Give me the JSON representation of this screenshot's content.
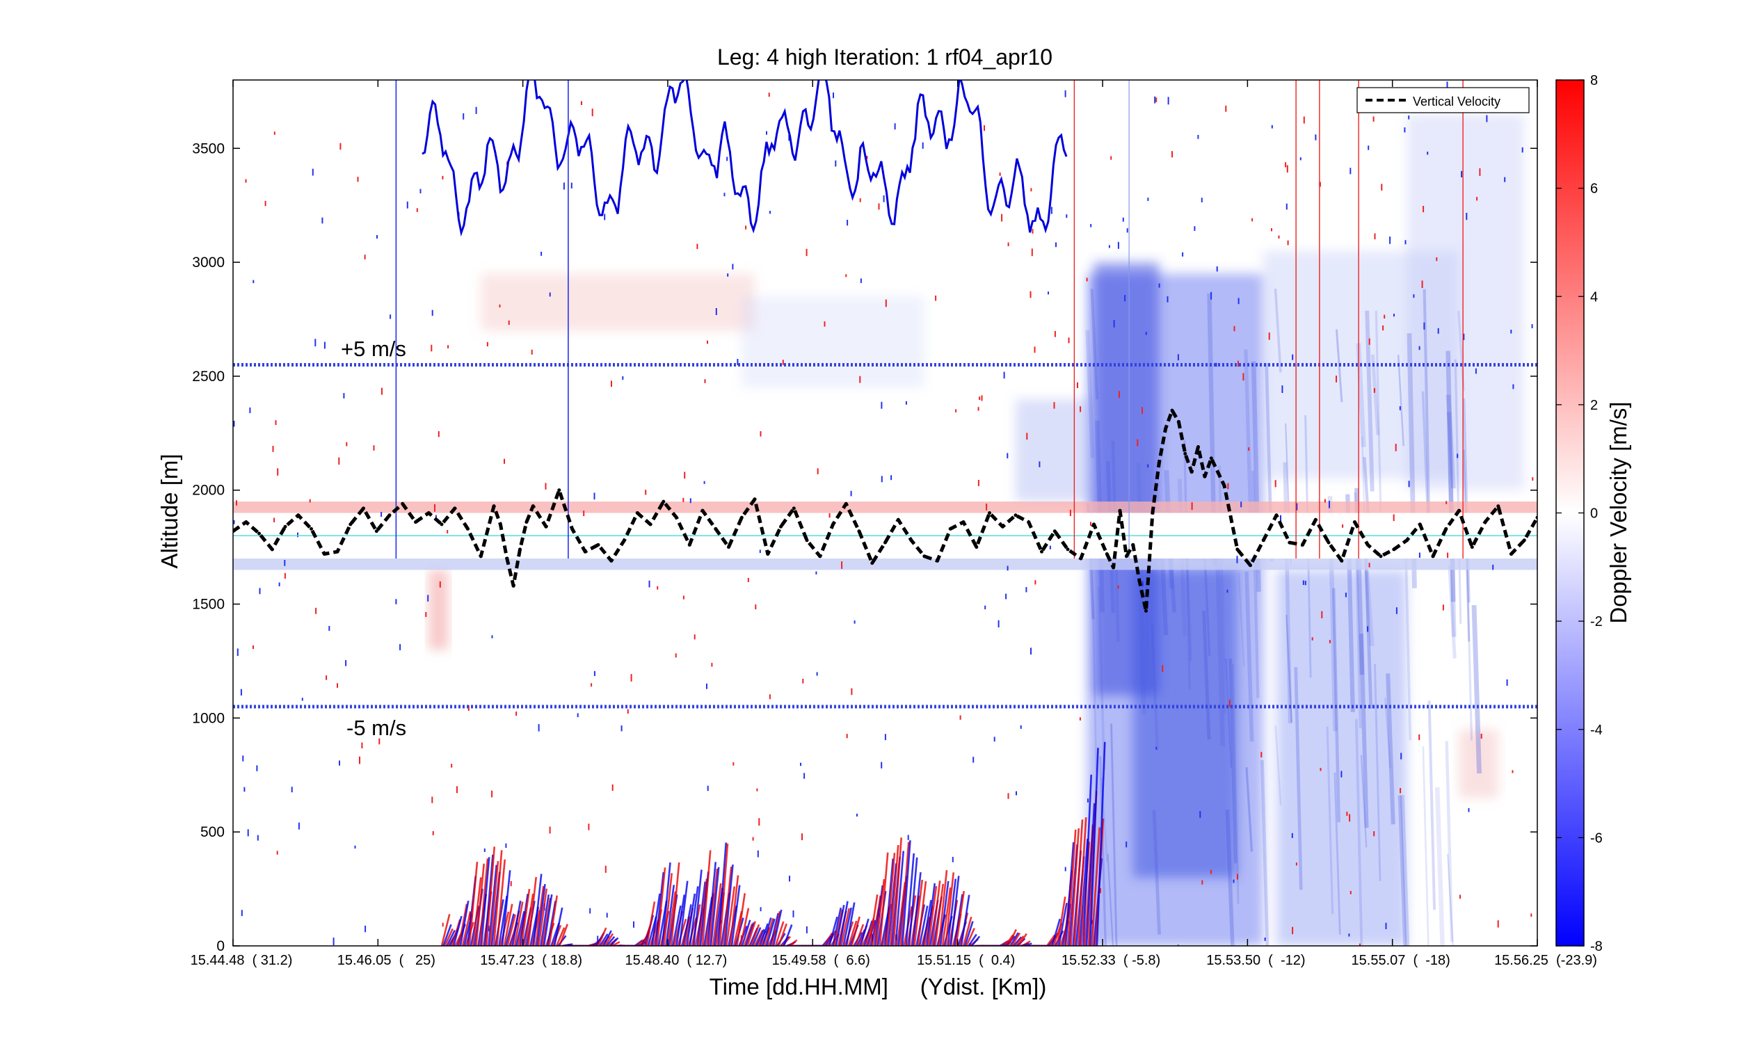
{
  "chart_data": {
    "type": "heatmap",
    "title": "Leg: 4 high Iteration: 1  rf04_apr10",
    "xlabel": "Time [dd.HH.MM]     (Ydist. [Km])",
    "ylabel": "Altitude [m]",
    "ylim": [
      0,
      3800
    ],
    "yticks": [
      0,
      500,
      1000,
      1500,
      2000,
      2500,
      3000,
      3500
    ],
    "ytick_labels": [
      "0",
      "500",
      "1000",
      "1500",
      "2000",
      "2500",
      "3000",
      "3500"
    ],
    "xlim": [
      0,
      1
    ],
    "xtick_labels": [
      {
        "time": "15.44.48",
        "dist": "( 31.2)",
        "pos": 0.0
      },
      {
        "time": "15.46.05",
        "dist": "(   25)",
        "pos": 0.1111
      },
      {
        "time": "15.47.23",
        "dist": "( 18.8)",
        "pos": 0.2222
      },
      {
        "time": "15.48.40",
        "dist": "( 12.7)",
        "pos": 0.3333
      },
      {
        "time": "15.49.58",
        "dist": "(  6.6)",
        "pos": 0.4444
      },
      {
        "time": "15.51.15",
        "dist": "(  0.4)",
        "pos": 0.5556
      },
      {
        "time": "15.52.33",
        "dist": "( -5.8)",
        "pos": 0.6667
      },
      {
        "time": "15.53.50",
        "dist": "(  -12)",
        "pos": 0.7778
      },
      {
        "time": "15.55.07",
        "dist": "(  -18)",
        "pos": 0.8889
      },
      {
        "time": "15.56.25",
        "dist": "(-23.9)",
        "pos": 1.0
      }
    ],
    "colorbar": {
      "label": "Doppler Velocity [m/s]",
      "range": [
        -8,
        8
      ],
      "ticks": [
        8,
        6,
        4,
        2,
        0,
        -2,
        -4,
        -6,
        -8
      ],
      "tick_labels": [
        "8",
        "6",
        "4",
        "2",
        "0",
        "-2",
        "-4",
        "-6",
        "-8"
      ],
      "colors": {
        "positive": "#ff0000",
        "zero": "#ffffff",
        "negative": "#0000ff"
      }
    },
    "legend": {
      "placement": "top-right",
      "entries": [
        "Vertical Velocity"
      ]
    },
    "annotations": [
      {
        "text": "+5 m/s",
        "altitude": 2550
      },
      {
        "text": "-5 m/s",
        "altitude": 1050
      }
    ],
    "reference_lines": {
      "plus5_altitude": 2550,
      "minus5_altitude": 1050,
      "zero_altitude": 1800,
      "flight_band_altitudes": [
        1650,
        1950
      ]
    },
    "vertical_markers": {
      "blue": [
        0.125,
        0.257
      ],
      "red": [
        0.645,
        0.815,
        0.833,
        0.863,
        0.943
      ],
      "light_blue": [
        0.687
      ]
    },
    "series": [
      {
        "name": "Vertical Velocity",
        "style": "black-dashed",
        "x": [
          0.0,
          0.01,
          0.02,
          0.03,
          0.04,
          0.05,
          0.06,
          0.07,
          0.08,
          0.09,
          0.1,
          0.11,
          0.12,
          0.13,
          0.14,
          0.15,
          0.16,
          0.17,
          0.18,
          0.19,
          0.2,
          0.205,
          0.21,
          0.215,
          0.22,
          0.225,
          0.23,
          0.24,
          0.25,
          0.26,
          0.27,
          0.28,
          0.29,
          0.3,
          0.31,
          0.32,
          0.33,
          0.34,
          0.35,
          0.36,
          0.37,
          0.38,
          0.39,
          0.4,
          0.41,
          0.42,
          0.43,
          0.44,
          0.45,
          0.46,
          0.47,
          0.48,
          0.49,
          0.5,
          0.51,
          0.52,
          0.53,
          0.54,
          0.55,
          0.56,
          0.57,
          0.58,
          0.59,
          0.6,
          0.61,
          0.62,
          0.63,
          0.64,
          0.65,
          0.66,
          0.67,
          0.675,
          0.68,
          0.685,
          0.69,
          0.695,
          0.7,
          0.705,
          0.71,
          0.715,
          0.72,
          0.725,
          0.73,
          0.735,
          0.74,
          0.745,
          0.75,
          0.76,
          0.77,
          0.78,
          0.79,
          0.8,
          0.81,
          0.82,
          0.83,
          0.84,
          0.85,
          0.86,
          0.87,
          0.88,
          0.89,
          0.9,
          0.91,
          0.92,
          0.93,
          0.94,
          0.95,
          0.96,
          0.97,
          0.98,
          0.99,
          1.0
        ],
        "y": [
          0.2,
          0.6,
          0.1,
          -0.6,
          0.4,
          0.9,
          0.3,
          -0.8,
          -0.7,
          0.5,
          1.2,
          0.2,
          0.9,
          1.4,
          0.6,
          1.0,
          0.5,
          1.2,
          0.3,
          -0.9,
          1.3,
          0.5,
          -1.0,
          -2.2,
          -0.6,
          0.6,
          1.3,
          0.4,
          2.0,
          0.3,
          -0.7,
          -0.4,
          -1.1,
          -0.2,
          1.0,
          0.5,
          1.5,
          0.8,
          -0.4,
          1.1,
          0.3,
          -0.5,
          0.8,
          1.6,
          -0.8,
          0.4,
          1.2,
          -0.2,
          -0.9,
          0.5,
          1.4,
          0.2,
          -1.2,
          -0.3,
          0.7,
          -0.2,
          -0.9,
          -1.1,
          0.3,
          0.6,
          -0.5,
          1.0,
          0.4,
          0.9,
          0.6,
          -0.7,
          0.2,
          -0.6,
          -1.0,
          0.5,
          -0.8,
          -1.4,
          1.1,
          -0.9,
          -0.4,
          -2.0,
          -3.3,
          1.0,
          3.2,
          4.7,
          5.5,
          5.0,
          3.6,
          2.8,
          3.9,
          2.6,
          3.4,
          2.2,
          -0.6,
          -1.3,
          -0.2,
          0.9,
          -0.3,
          -0.4,
          0.7,
          -0.3,
          -1.1,
          0.6,
          -0.4,
          -0.9,
          -0.6,
          -0.2,
          0.5,
          -0.9,
          0.3,
          1.1,
          -0.5,
          0.6,
          1.3,
          -0.8,
          -0.2,
          0.8
        ]
      }
    ]
  }
}
